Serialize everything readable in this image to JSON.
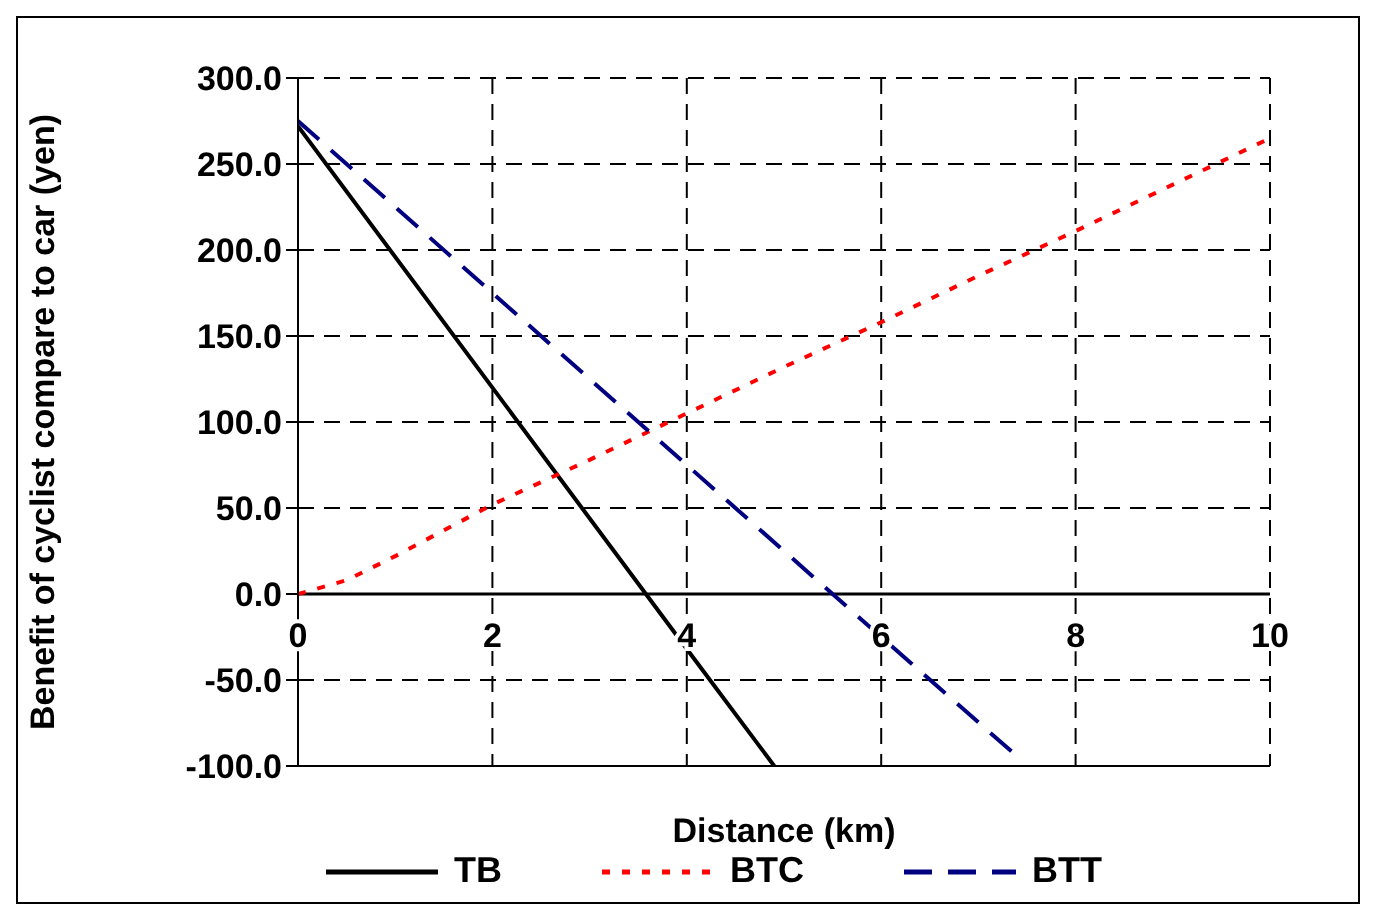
{
  "chart_data": {
    "type": "line",
    "xlabel": "Distance (km)",
    "ylabel": "Benefit of cyclist compare to car (yen)",
    "xlim": [
      0,
      10
    ],
    "xticks": [
      0,
      2,
      4,
      6,
      8,
      10
    ],
    "ylim": [
      -100,
      300
    ],
    "yticks": [
      {
        "value": -100,
        "label": "-100.0"
      },
      {
        "value": -50,
        "label": "-50.0"
      },
      {
        "value": 0,
        "label": "0.0"
      },
      {
        "value": 50,
        "label": "50.0"
      },
      {
        "value": 100,
        "label": "100.0"
      },
      {
        "value": 150,
        "label": "150.0"
      },
      {
        "value": 200,
        "label": "200.0"
      },
      {
        "value": 250,
        "label": "250.0"
      },
      {
        "value": 300,
        "label": "300.0"
      }
    ],
    "grid": true,
    "legend": "bottom",
    "marker": "none",
    "series": [
      {
        "name": "TB",
        "color": "#000000",
        "line_style": "solid",
        "x": [
          0,
          2,
          4,
          4.9
        ],
        "values": [
          272,
          120,
          -32,
          -100
        ]
      },
      {
        "name": "BTC",
        "color": "#ff0000",
        "line_style": "dotted",
        "x": [
          0,
          0.5,
          1,
          2,
          3,
          4,
          5,
          6,
          7,
          8,
          9,
          10
        ],
        "values": [
          0,
          8,
          22,
          52,
          78,
          105,
          132,
          158,
          185,
          211,
          238,
          265
        ]
      },
      {
        "name": "BTT",
        "color": "#000080",
        "line_style": "dashed",
        "x": [
          0,
          2,
          4,
          6,
          7.35
        ],
        "values": [
          275,
          175,
          75,
          -25,
          -92
        ]
      }
    ]
  }
}
